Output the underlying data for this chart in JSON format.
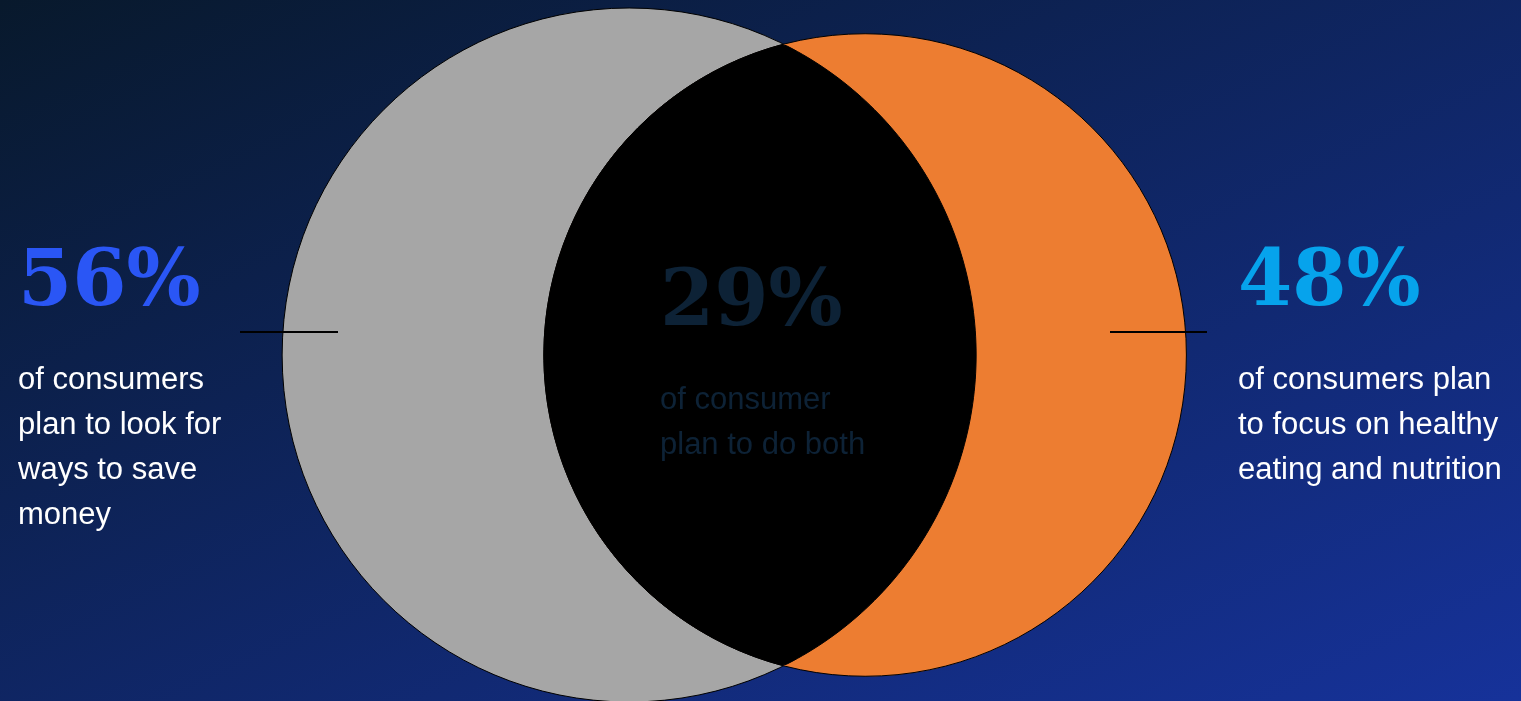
{
  "chart_data": {
    "type": "other",
    "categories": [
      "of consumers plan to look for ways to save money",
      "of consumers plan to focus on healthy eating and nutrition",
      "of consumer plan to do both"
    ],
    "values": [
      56,
      48,
      29
    ],
    "value_labels": [
      "56%",
      "48%",
      "29%"
    ],
    "colors": [
      "#a6a6a6",
      "#ed7d31",
      "#000000"
    ]
  }
}
